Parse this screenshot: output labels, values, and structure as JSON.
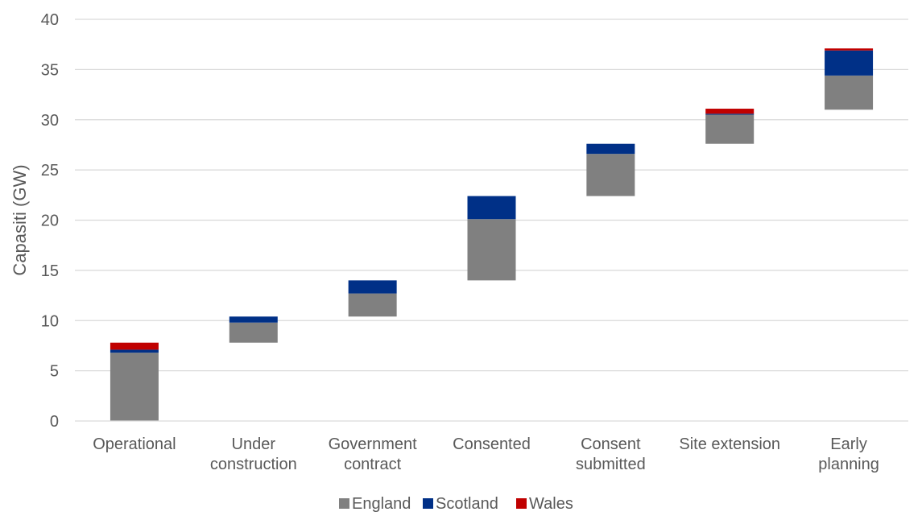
{
  "chart_data": {
    "type": "bar",
    "subtype": "stacked-waterfall",
    "title": "",
    "xlabel": "",
    "ylabel": "Capasiti (GW)",
    "ylim": [
      0,
      40
    ],
    "yticks": [
      0,
      5,
      10,
      15,
      20,
      25,
      30,
      35,
      40
    ],
    "grid": true,
    "legend_position": "bottom",
    "categories": [
      [
        "Operational"
      ],
      [
        "Under",
        "construction"
      ],
      [
        "Government",
        "contract"
      ],
      [
        "Consented"
      ],
      [
        "Consent",
        "submitted"
      ],
      [
        "Site extension"
      ],
      [
        "Early",
        "planning"
      ]
    ],
    "base": [
      0,
      7.8,
      10.4,
      14.0,
      22.4,
      27.6,
      31.0
    ],
    "series": [
      {
        "name": "England",
        "color": "#808080",
        "values": [
          6.8,
          2.0,
          2.3,
          6.1,
          4.2,
          2.9,
          3.4
        ]
      },
      {
        "name": "Scotland",
        "color": "#003087",
        "values": [
          0.3,
          0.6,
          1.3,
          2.3,
          1.0,
          0.1,
          2.5
        ]
      },
      {
        "name": "Wales",
        "color": "#c00000",
        "values": [
          0.7,
          0.0,
          0.0,
          0.0,
          0.0,
          0.5,
          0.2
        ]
      }
    ]
  }
}
